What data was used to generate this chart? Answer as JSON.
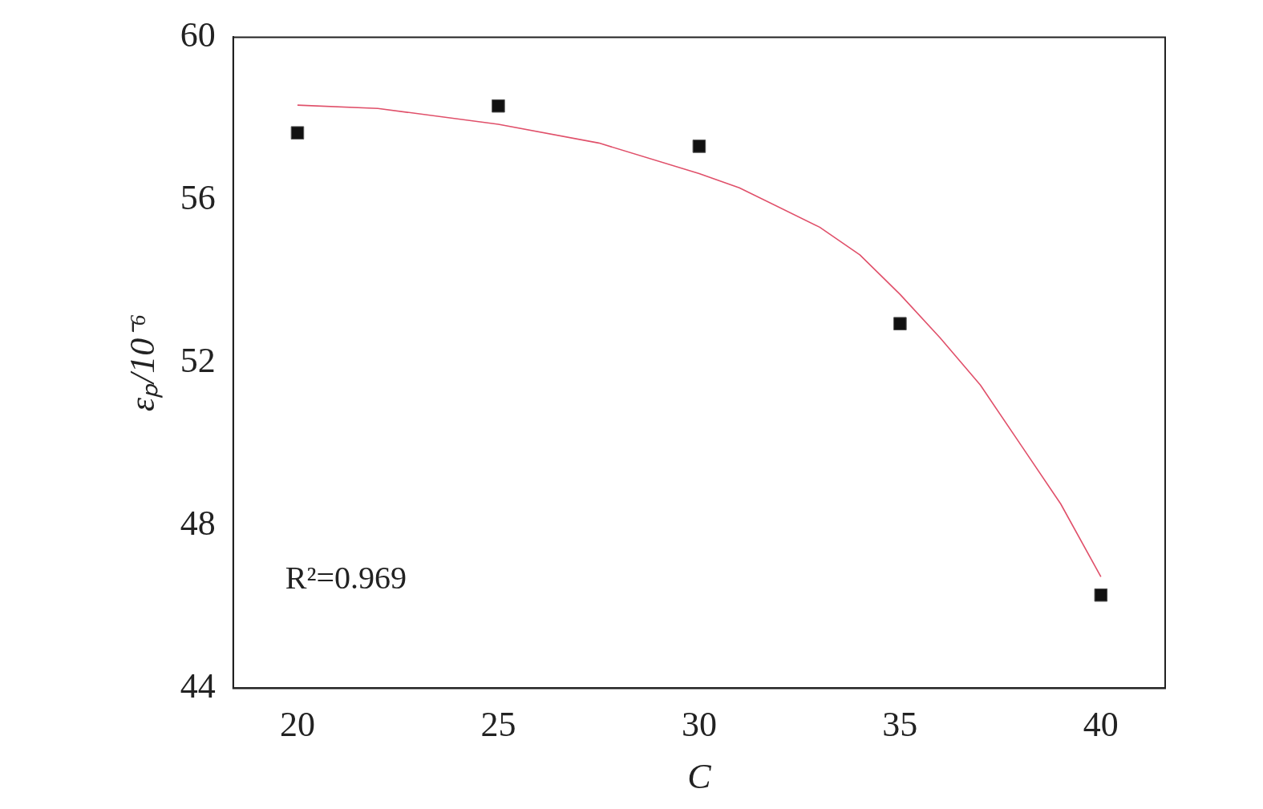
{
  "chart_data": {
    "type": "scatter",
    "xlabel": "C",
    "ylabel": "εₚ/10⁻⁶",
    "annotations": [
      "R²=0.969"
    ],
    "xlim": [
      18.4,
      41.6
    ],
    "xticks": [
      20,
      25,
      30,
      35,
      40
    ],
    "ylim": [
      44,
      60
    ],
    "yticks": [
      44,
      48,
      52,
      56,
      60
    ],
    "grid": false,
    "legend": false,
    "marker": "square",
    "series": [
      {
        "color": "#111111",
        "x": [
          20,
          25,
          30,
          35,
          40
        ],
        "values": [
          57.65,
          58.31,
          57.32,
          52.96,
          46.29
        ]
      },
      {
        "type": "line",
        "color": "#e0506a",
        "marker": "none",
        "x": [
          20,
          22,
          25,
          27.5,
          30,
          31,
          33,
          34,
          35,
          36,
          37,
          38,
          39,
          40
        ],
        "values": [
          58.33,
          58.25,
          57.86,
          57.4,
          56.65,
          56.3,
          55.33,
          54.65,
          53.68,
          52.61,
          51.45,
          49.99,
          48.53,
          46.74
        ]
      }
    ]
  }
}
